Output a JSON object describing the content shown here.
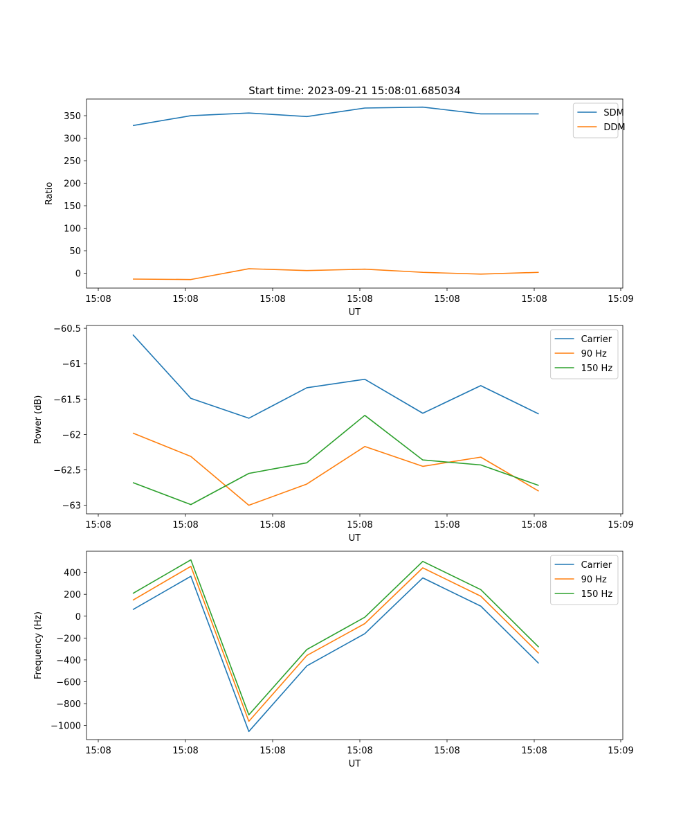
{
  "figure_title": "Start time: 2023-09-21 15:08:01.685034",
  "chart_data": [
    {
      "type": "line",
      "title": "Start time: 2023-09-21 15:08:01.685034",
      "xlabel": "UT",
      "ylabel": "Ratio",
      "x_tick_labels": [
        "15:08",
        "15:08",
        "15:08",
        "15:08",
        "15:08",
        "15:08",
        "15:09"
      ],
      "x": [
        1,
        2,
        3,
        4,
        5,
        6,
        7,
        8
      ],
      "xlim": [
        0.2,
        9.45
      ],
      "ylim": [
        -33,
        387
      ],
      "yticks": [
        0,
        50,
        100,
        150,
        200,
        250,
        300,
        350
      ],
      "legend": "top-right",
      "series": [
        {
          "name": "SDM",
          "color": "#1f77b4",
          "values": [
            328,
            350,
            356,
            348,
            367,
            369,
            354,
            354
          ]
        },
        {
          "name": "DDM",
          "color": "#ff7f0e",
          "values": [
            -13,
            -14,
            10,
            6,
            9,
            2,
            -2,
            2
          ]
        }
      ]
    },
    {
      "type": "line",
      "title": "",
      "xlabel": "UT",
      "ylabel": "Power (dB)",
      "x_tick_labels": [
        "15:08",
        "15:08",
        "15:08",
        "15:08",
        "15:08",
        "15:08",
        "15:09"
      ],
      "x": [
        1,
        2,
        3,
        4,
        5,
        6,
        7,
        8
      ],
      "xlim": [
        0.2,
        9.45
      ],
      "ylim": [
        -63.121,
        -60.46
      ],
      "yticks": [
        -63.0,
        -62.5,
        -62.0,
        -61.5,
        -61.0,
        -60.5
      ],
      "legend": "top-right",
      "series": [
        {
          "name": "Carrier",
          "color": "#1f77b4",
          "values": [
            -60.59,
            -61.49,
            -61.77,
            -61.34,
            -61.22,
            -61.7,
            -61.31,
            -61.71
          ]
        },
        {
          "name": "90 Hz",
          "color": "#ff7f0e",
          "values": [
            -61.98,
            -62.31,
            -63.0,
            -62.7,
            -62.17,
            -62.45,
            -62.32,
            -62.8
          ]
        },
        {
          "name": "150 Hz",
          "color": "#2ca02c",
          "values": [
            -62.68,
            -62.99,
            -62.55,
            -62.4,
            -61.73,
            -62.36,
            -62.43,
            -62.72
          ]
        }
      ]
    },
    {
      "type": "line",
      "title": "",
      "xlabel": "UT",
      "ylabel": "Frequency (Hz)",
      "x_tick_labels": [
        "15:08",
        "15:08",
        "15:08",
        "15:08",
        "15:08",
        "15:08",
        "15:09"
      ],
      "x": [
        1,
        2,
        3,
        4,
        5,
        6,
        7,
        8
      ],
      "xlim": [
        0.2,
        9.45
      ],
      "ylim": [
        -1129,
        594
      ],
      "yticks": [
        -1000,
        -800,
        -600,
        -400,
        -200,
        0,
        200,
        400
      ],
      "legend": "top-right",
      "series": [
        {
          "name": "Carrier",
          "color": "#1f77b4",
          "values": [
            60,
            365,
            -1055,
            -455,
            -160,
            350,
            92,
            -432
          ]
        },
        {
          "name": "90 Hz",
          "color": "#ff7f0e",
          "values": [
            146,
            456,
            -962,
            -360,
            -68,
            442,
            183,
            -340
          ]
        },
        {
          "name": "150 Hz",
          "color": "#2ca02c",
          "values": [
            208,
            515,
            -903,
            -305,
            -10,
            501,
            243,
            -283
          ]
        }
      ]
    }
  ]
}
